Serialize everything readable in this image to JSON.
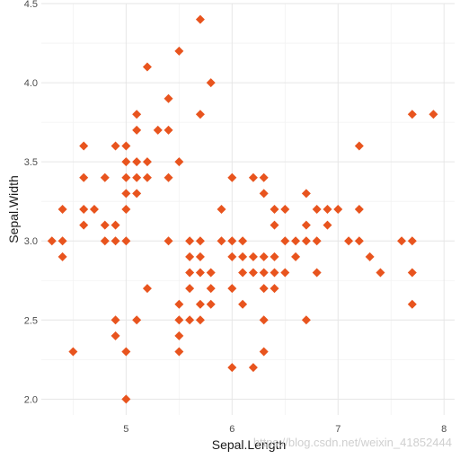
{
  "chart_data": {
    "type": "scatter",
    "title": "",
    "xlabel": "Sepal.Length",
    "ylabel": "Sepal.Width",
    "xlim": [
      4.2,
      8.1
    ],
    "ylim": [
      1.9,
      4.5
    ],
    "x_ticks": [
      5,
      6,
      7,
      8
    ],
    "y_ticks": [
      2.0,
      2.5,
      3.0,
      3.5,
      4.0,
      4.5
    ],
    "x_tick_labels": [
      "5",
      "6",
      "7",
      "8"
    ],
    "y_tick_labels": [
      "2.0",
      "2.5",
      "3.0",
      "3.5",
      "4.0",
      "4.5"
    ],
    "grid": true,
    "legend": "none",
    "marker": "diamond",
    "color": "#E8541E",
    "points": [
      [
        4.3,
        3.0
      ],
      [
        4.4,
        3.0
      ],
      [
        4.4,
        3.2
      ],
      [
        4.4,
        2.9
      ],
      [
        4.5,
        2.3
      ],
      [
        4.6,
        3.1
      ],
      [
        4.6,
        3.4
      ],
      [
        4.6,
        3.6
      ],
      [
        4.6,
        3.2
      ],
      [
        4.7,
        3.2
      ],
      [
        4.8,
        3.4
      ],
      [
        4.8,
        3.0
      ],
      [
        4.8,
        3.1
      ],
      [
        4.9,
        3.0
      ],
      [
        4.9,
        3.1
      ],
      [
        4.9,
        3.6
      ],
      [
        4.9,
        2.5
      ],
      [
        4.9,
        2.4
      ],
      [
        5.0,
        3.6
      ],
      [
        5.0,
        3.4
      ],
      [
        5.0,
        3.0
      ],
      [
        5.0,
        3.3
      ],
      [
        5.0,
        3.5
      ],
      [
        5.0,
        3.2
      ],
      [
        5.0,
        2.0
      ],
      [
        5.0,
        2.3
      ],
      [
        5.1,
        3.5
      ],
      [
        5.1,
        3.8
      ],
      [
        5.1,
        3.7
      ],
      [
        5.1,
        3.3
      ],
      [
        5.1,
        3.4
      ],
      [
        5.1,
        2.5
      ],
      [
        5.2,
        3.5
      ],
      [
        5.2,
        3.4
      ],
      [
        5.2,
        4.1
      ],
      [
        5.2,
        2.7
      ],
      [
        5.3,
        3.7
      ],
      [
        5.4,
        3.9
      ],
      [
        5.4,
        3.7
      ],
      [
        5.4,
        3.4
      ],
      [
        5.4,
        3.0
      ],
      [
        5.5,
        4.2
      ],
      [
        5.5,
        3.5
      ],
      [
        5.5,
        2.3
      ],
      [
        5.5,
        2.4
      ],
      [
        5.5,
        2.5
      ],
      [
        5.5,
        2.6
      ],
      [
        5.6,
        2.9
      ],
      [
        5.6,
        3.0
      ],
      [
        5.6,
        2.5
      ],
      [
        5.6,
        2.8
      ],
      [
        5.6,
        2.7
      ],
      [
        5.7,
        4.4
      ],
      [
        5.7,
        3.8
      ],
      [
        5.7,
        2.8
      ],
      [
        5.7,
        2.6
      ],
      [
        5.7,
        3.0
      ],
      [
        5.7,
        2.9
      ],
      [
        5.7,
        2.5
      ],
      [
        5.8,
        4.0
      ],
      [
        5.8,
        2.7
      ],
      [
        5.8,
        2.6
      ],
      [
        5.8,
        2.8
      ],
      [
        5.9,
        3.0
      ],
      [
        5.9,
        3.2
      ],
      [
        6.0,
        2.2
      ],
      [
        6.0,
        2.9
      ],
      [
        6.0,
        3.4
      ],
      [
        6.0,
        3.0
      ],
      [
        6.0,
        2.7
      ],
      [
        6.1,
        2.8
      ],
      [
        6.1,
        3.0
      ],
      [
        6.1,
        2.9
      ],
      [
        6.1,
        2.6
      ],
      [
        6.2,
        2.2
      ],
      [
        6.2,
        2.9
      ],
      [
        6.2,
        3.4
      ],
      [
        6.2,
        2.8
      ],
      [
        6.3,
        3.3
      ],
      [
        6.3,
        2.5
      ],
      [
        6.3,
        2.3
      ],
      [
        6.3,
        2.9
      ],
      [
        6.3,
        2.7
      ],
      [
        6.3,
        2.8
      ],
      [
        6.3,
        3.4
      ],
      [
        6.4,
        3.2
      ],
      [
        6.4,
        2.9
      ],
      [
        6.4,
        2.7
      ],
      [
        6.4,
        2.8
      ],
      [
        6.4,
        3.1
      ],
      [
        6.5,
        2.8
      ],
      [
        6.5,
        3.0
      ],
      [
        6.5,
        3.2
      ],
      [
        6.6,
        2.9
      ],
      [
        6.6,
        3.0
      ],
      [
        6.7,
        3.1
      ],
      [
        6.7,
        3.0
      ],
      [
        6.7,
        2.5
      ],
      [
        6.7,
        3.3
      ],
      [
        6.8,
        2.8
      ],
      [
        6.8,
        3.0
      ],
      [
        6.8,
        3.2
      ],
      [
        6.9,
        3.1
      ],
      [
        6.9,
        3.2
      ],
      [
        7.0,
        3.2
      ],
      [
        7.1,
        3.0
      ],
      [
        7.2,
        3.6
      ],
      [
        7.2,
        3.2
      ],
      [
        7.2,
        3.0
      ],
      [
        7.3,
        2.9
      ],
      [
        7.4,
        2.8
      ],
      [
        7.6,
        3.0
      ],
      [
        7.7,
        3.8
      ],
      [
        7.7,
        2.6
      ],
      [
        7.7,
        2.8
      ],
      [
        7.7,
        3.0
      ],
      [
        7.9,
        3.8
      ]
    ]
  },
  "watermark": "https://blog.csdn.net/weixin_41852444"
}
